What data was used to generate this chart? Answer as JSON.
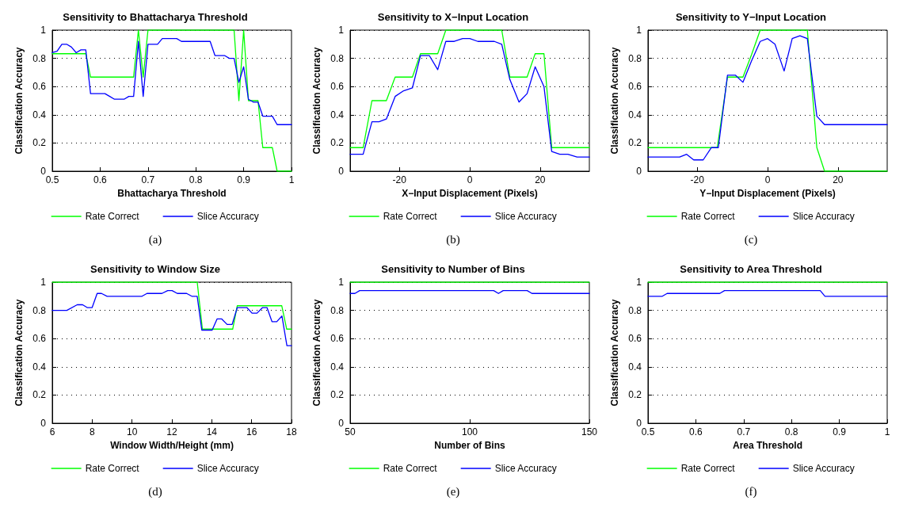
{
  "chart_data": [
    {
      "type": "line",
      "title": "Sensitivity to Bhattacharya Threshold",
      "xlabel": "Bhattacharya Threshold",
      "ylabel": "Classification Accuracy",
      "xlim": [
        0.5,
        1
      ],
      "xticks": [
        0.5,
        0.6,
        0.7,
        0.8,
        0.9,
        1
      ],
      "ylim": [
        0,
        1
      ],
      "yticks": [
        0,
        0.2,
        0.4,
        0.6,
        0.8,
        1
      ],
      "grid": "y",
      "legend": "bottom",
      "marker": "none",
      "line_style": "solid",
      "annotations": [
        "(a)"
      ],
      "series": [
        {
          "name": "Rate Correct",
          "color": "#00ff00",
          "x": [
            0.5,
            0.57,
            0.58,
            0.67,
            0.68,
            0.69,
            0.7,
            0.88,
            0.89,
            0.9,
            0.91,
            0.93,
            0.94,
            0.96,
            0.97,
            1
          ],
          "values": [
            0.833,
            0.833,
            0.667,
            0.667,
            1,
            0.667,
            1,
            1,
            0.5,
            1,
            0.5,
            0.5,
            0.167,
            0.167,
            0,
            0
          ]
        },
        {
          "name": "Slice Accuracy",
          "color": "#0000ff",
          "x": [
            0.5,
            0.51,
            0.52,
            0.53,
            0.54,
            0.55,
            0.56,
            0.57,
            0.58,
            0.61,
            0.62,
            0.63,
            0.65,
            0.66,
            0.67,
            0.68,
            0.69,
            0.7,
            0.72,
            0.73,
            0.76,
            0.77,
            0.83,
            0.84,
            0.86,
            0.87,
            0.88,
            0.89,
            0.9,
            0.91,
            0.92,
            0.93,
            0.94,
            0.96,
            0.97,
            1
          ],
          "values": [
            0.84,
            0.85,
            0.9,
            0.9,
            0.88,
            0.84,
            0.86,
            0.86,
            0.55,
            0.55,
            0.53,
            0.51,
            0.51,
            0.53,
            0.53,
            0.92,
            0.53,
            0.9,
            0.9,
            0.94,
            0.94,
            0.92,
            0.92,
            0.82,
            0.82,
            0.8,
            0.8,
            0.63,
            0.74,
            0.51,
            0.49,
            0.49,
            0.39,
            0.39,
            0.33,
            0.33
          ]
        }
      ]
    },
    {
      "type": "line",
      "title": "Sensitivity to X−Input Location",
      "xlabel": "X−Input Displacement (Pixels)",
      "ylabel": "Classification Accuracy",
      "xlim": [
        -34,
        34
      ],
      "xticks": [
        -20,
        0,
        20
      ],
      "ylim": [
        0,
        1
      ],
      "yticks": [
        0,
        0.2,
        0.4,
        0.6,
        0.8,
        1
      ],
      "grid": "y",
      "legend": "bottom",
      "marker": "none",
      "line_style": "solid",
      "annotations": [
        "(b)"
      ],
      "series": [
        {
          "name": "Rate Correct",
          "color": "#00ff00",
          "x": [
            -34,
            -30.3,
            -27.8,
            -23.7,
            -21.2,
            -16.3,
            -14,
            -9.1,
            -6.8,
            9.1,
            11.4,
            16.3,
            18.6,
            21.1,
            23.3,
            34
          ],
          "values": [
            0.167,
            0.167,
            0.5,
            0.5,
            0.667,
            0.667,
            0.833,
            0.833,
            1,
            1,
            0.667,
            0.667,
            0.833,
            0.833,
            0.167,
            0.167
          ]
        },
        {
          "name": "Slice Accuracy",
          "color": "#0000ff",
          "x": [
            -34,
            -30.3,
            -27.8,
            -25.8,
            -23.7,
            -21.2,
            -18.8,
            -16.3,
            -14,
            -11.5,
            -9.1,
            -6.8,
            -4.4,
            -2,
            0,
            2.3,
            4.5,
            7,
            9.1,
            11.4,
            14,
            16.3,
            18.6,
            21.1,
            23.3,
            25.6,
            27.9,
            30.5,
            34
          ],
          "values": [
            0.12,
            0.12,
            0.35,
            0.35,
            0.37,
            0.53,
            0.57,
            0.59,
            0.82,
            0.82,
            0.72,
            0.92,
            0.92,
            0.94,
            0.94,
            0.92,
            0.92,
            0.92,
            0.9,
            0.65,
            0.49,
            0.55,
            0.74,
            0.6,
            0.14,
            0.12,
            0.12,
            0.1,
            0.1
          ]
        }
      ]
    },
    {
      "type": "line",
      "title": "Sensitivity to Y−Input Location",
      "xlabel": "Y−Input Displacement (Pixels)",
      "ylabel": "Classification Accuracy",
      "xlim": [
        -34,
        34
      ],
      "xticks": [
        -20,
        0,
        20
      ],
      "ylim": [
        0,
        1
      ],
      "yticks": [
        0,
        0.2,
        0.4,
        0.6,
        0.8,
        1
      ],
      "grid": "y",
      "legend": "bottom",
      "marker": "none",
      "line_style": "solid",
      "annotations": [
        "(c)"
      ],
      "series": [
        {
          "name": "Rate Correct",
          "color": "#00ff00",
          "x": [
            -34,
            -14.3,
            -11.4,
            -7,
            -4.5,
            -2.1,
            11.3,
            14,
            16.2,
            34
          ],
          "values": [
            0.167,
            0.167,
            0.667,
            0.667,
            0.83,
            1,
            1,
            0.167,
            0,
            0
          ]
        },
        {
          "name": "Slice Accuracy",
          "color": "#0000ff",
          "x": [
            -34,
            -25,
            -23,
            -21,
            -18.3,
            -16,
            -14,
            -11.4,
            -9.1,
            -7,
            -4.6,
            -2.1,
            0,
            2.1,
            4.7,
            7,
            9.2,
            11.3,
            14,
            16.2,
            34
          ],
          "values": [
            0.1,
            0.1,
            0.12,
            0.08,
            0.08,
            0.167,
            0.167,
            0.68,
            0.68,
            0.63,
            0.78,
            0.92,
            0.94,
            0.9,
            0.71,
            0.94,
            0.96,
            0.94,
            0.39,
            0.33,
            0.33
          ]
        }
      ]
    },
    {
      "type": "line",
      "title": "Sensitivity to Window Size",
      "xlabel": "Window Width/Height (mm)",
      "ylabel": "Classification Accuracy",
      "xlim": [
        6,
        18
      ],
      "xticks": [
        6,
        8,
        10,
        12,
        14,
        16,
        18
      ],
      "ylim": [
        0,
        1
      ],
      "yticks": [
        0,
        0.2,
        0.4,
        0.6,
        0.8,
        1
      ],
      "grid": "y",
      "legend": "bottom",
      "marker": "none",
      "line_style": "solid",
      "annotations": [
        "(d)"
      ],
      "series": [
        {
          "name": "Rate Correct",
          "color": "#00ff00",
          "x": [
            6,
            13.27,
            13.53,
            15.05,
            15.28,
            17.51,
            17.76,
            18
          ],
          "values": [
            1,
            1,
            0.667,
            0.667,
            0.833,
            0.833,
            0.667,
            0.667
          ]
        },
        {
          "name": "Slice Accuracy",
          "color": "#0000ff",
          "x": [
            6,
            6.73,
            7.25,
            7.52,
            7.75,
            8,
            8.25,
            8.47,
            8.75,
            10.5,
            10.75,
            11.5,
            11.79,
            12.01,
            12.27,
            12.74,
            13,
            13.27,
            13.5,
            14.02,
            14.27,
            14.49,
            14.77,
            15.02,
            15.28,
            15.76,
            16.02,
            16.27,
            16.55,
            16.77,
            17.02,
            17.26,
            17.52,
            17.77,
            18
          ],
          "values": [
            0.8,
            0.8,
            0.84,
            0.84,
            0.82,
            0.82,
            0.92,
            0.92,
            0.9,
            0.9,
            0.92,
            0.92,
            0.94,
            0.94,
            0.92,
            0.92,
            0.9,
            0.9,
            0.66,
            0.66,
            0.74,
            0.74,
            0.7,
            0.7,
            0.82,
            0.82,
            0.78,
            0.78,
            0.82,
            0.82,
            0.72,
            0.72,
            0.76,
            0.55,
            0.55
          ]
        }
      ]
    },
    {
      "type": "line",
      "title": "Sensitivity to Number of Bins",
      "xlabel": "Number of Bins",
      "ylabel": "Classification Accuracy",
      "xlim": [
        50,
        150
      ],
      "xticks": [
        50,
        100,
        150
      ],
      "ylim": [
        0,
        1
      ],
      "yticks": [
        0,
        0.2,
        0.4,
        0.6,
        0.8,
        1
      ],
      "grid": "y",
      "legend": "bottom",
      "marker": "none",
      "line_style": "solid",
      "annotations": [
        "(e)"
      ],
      "series": [
        {
          "name": "Rate Correct",
          "color": "#00ff00",
          "x": [
            50,
            150
          ],
          "values": [
            1,
            1
          ]
        },
        {
          "name": "Slice Accuracy",
          "color": "#0000ff",
          "x": [
            50,
            52,
            54,
            110,
            112,
            114,
            124,
            126,
            150
          ],
          "values": [
            0.92,
            0.92,
            0.94,
            0.94,
            0.92,
            0.94,
            0.94,
            0.92,
            0.92
          ]
        }
      ]
    },
    {
      "type": "line",
      "title": "Sensitivity to Area Threshold",
      "xlabel": "Area Threshold",
      "ylabel": "Classification Accuracy",
      "xlim": [
        0.5,
        1
      ],
      "xticks": [
        0.5,
        0.6,
        0.7,
        0.8,
        0.9,
        1
      ],
      "ylim": [
        0,
        1
      ],
      "yticks": [
        0,
        0.2,
        0.4,
        0.6,
        0.8,
        1
      ],
      "grid": "y",
      "legend": "bottom",
      "marker": "none",
      "line_style": "solid",
      "annotations": [
        "(f)"
      ],
      "series": [
        {
          "name": "Rate Correct",
          "color": "#00ff00",
          "x": [
            0.5,
            1
          ],
          "values": [
            1,
            1
          ]
        },
        {
          "name": "Slice Accuracy",
          "color": "#0000ff",
          "x": [
            0.5,
            0.53,
            0.54,
            0.65,
            0.66,
            0.86,
            0.87,
            1
          ],
          "values": [
            0.9,
            0.9,
            0.92,
            0.92,
            0.94,
            0.94,
            0.9,
            0.9
          ]
        }
      ]
    }
  ]
}
